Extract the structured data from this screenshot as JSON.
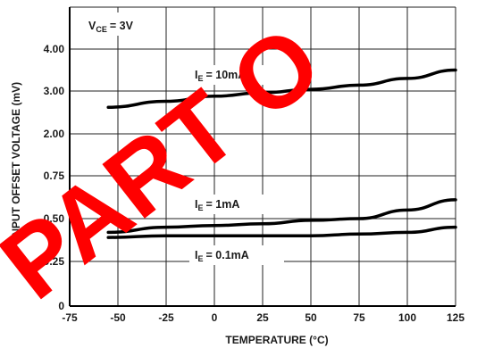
{
  "chart_data": {
    "type": "line",
    "title": "",
    "xlabel": "TEMPERATURE",
    "xlabel_unit": "(°C)",
    "ylabel": "INPUT OFFSET VOLTAGE (mV)",
    "x_ticks": [
      "-75",
      "-50",
      "-25",
      "0",
      "25",
      "50",
      "75",
      "100",
      "125"
    ],
    "y_ticks": [
      "0",
      "0.25",
      "0.50",
      "0.75",
      "2.00",
      "3.00",
      "4.00"
    ],
    "y_scale": "segmented (0–0.75 linear, then 2.00–4.00 compressed)",
    "xlim": [
      -75,
      125
    ],
    "grid": true,
    "condition_label": "V",
    "condition_sub": "CE",
    "condition_value": "= 3V",
    "series": [
      {
        "name": "I",
        "name_sub": "E",
        "name_value": "= 10mA",
        "x": [
          -55,
          -25,
          0,
          25,
          50,
          75,
          100,
          125
        ],
        "y": [
          2.62,
          2.76,
          2.88,
          2.96,
          3.04,
          3.14,
          3.3,
          3.5
        ]
      },
      {
        "name": "I",
        "name_sub": "E",
        "name_value": "= 1mA",
        "x": [
          -55,
          -25,
          0,
          25,
          50,
          75,
          100,
          125
        ],
        "y": [
          0.42,
          0.45,
          0.46,
          0.47,
          0.49,
          0.5,
          0.55,
          0.61
        ]
      },
      {
        "name": "I",
        "name_sub": "E",
        "name_value": "= 0.1mA",
        "x": [
          -55,
          -25,
          0,
          25,
          50,
          75,
          100,
          125
        ],
        "y": [
          0.39,
          0.4,
          0.4,
          0.4,
          0.4,
          0.41,
          0.42,
          0.45
        ]
      }
    ],
    "watermark": "PART O",
    "watermark_color": "#ff0000",
    "line_color": "#000000"
  }
}
